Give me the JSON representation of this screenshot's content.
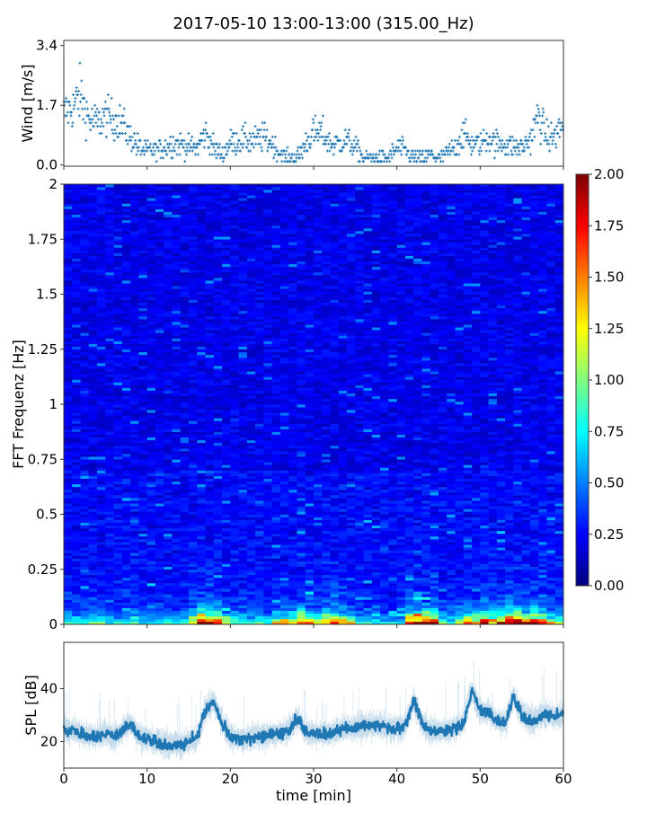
{
  "title": "2017-05-10 13:00-13:00 (315.00_Hz)",
  "chart_data": [
    {
      "type": "scatter",
      "panel": "wind",
      "ylabel": "Wind [m/s]",
      "xlim": [
        0,
        60
      ],
      "ylim": [
        0.0,
        3.55
      ],
      "yticks": [
        "0.0",
        "1.7",
        "3.4"
      ],
      "marker": "+",
      "color": "#1f77b4",
      "x_minutes": [
        0,
        1,
        2,
        3,
        4,
        5,
        6,
        7,
        8,
        9,
        10,
        11,
        12,
        13,
        14,
        15,
        16,
        17,
        18,
        19,
        20,
        21,
        22,
        23,
        24,
        25,
        26,
        27,
        28,
        29,
        30,
        31,
        32,
        33,
        34,
        35,
        36,
        37,
        38,
        39,
        40,
        41,
        42,
        43,
        44,
        45,
        46,
        47,
        48,
        49,
        50,
        51,
        52,
        53,
        54,
        55,
        56,
        57,
        58,
        59,
        60
      ],
      "wind_mean": [
        1.5,
        1.6,
        2.0,
        1.3,
        1.2,
        1.4,
        1.3,
        1.2,
        0.8,
        0.5,
        0.4,
        0.4,
        0.5,
        0.6,
        0.6,
        0.5,
        0.5,
        0.9,
        0.5,
        0.3,
        0.6,
        0.7,
        0.7,
        0.7,
        0.8,
        0.6,
        0.3,
        0.2,
        0.2,
        0.6,
        0.9,
        0.9,
        0.6,
        0.6,
        0.7,
        0.5,
        0.2,
        0.2,
        0.2,
        0.2,
        0.5,
        0.4,
        0.2,
        0.2,
        0.3,
        0.2,
        0.3,
        0.5,
        0.9,
        0.6,
        0.6,
        0.8,
        0.6,
        0.6,
        0.5,
        0.5,
        0.7,
        1.4,
        0.8,
        0.8,
        1.2
      ]
    },
    {
      "type": "heatmap",
      "panel": "spectrogram",
      "ylabel": "FFT Frequenz [Hz]",
      "xlim": [
        0,
        60
      ],
      "ylim": [
        0,
        2
      ],
      "yticks": [
        "0",
        "0.25",
        "0.5",
        "0.75",
        "1",
        "1.25",
        "1.5",
        "1.75",
        "2"
      ],
      "colormap": "jet",
      "clim": [
        0,
        2
      ],
      "colorbar_ticks": [
        "0.00",
        "0.25",
        "0.50",
        "0.75",
        "1.00",
        "1.25",
        "1.50",
        "1.75",
        "2.00"
      ],
      "background_level": 0.2,
      "low_band_level": [
        0.7,
        0.6,
        0.6,
        0.7,
        0.7,
        0.6,
        0.7,
        0.7,
        0.8,
        0.6,
        0.6,
        0.6,
        0.6,
        0.5,
        0.6,
        1.4,
        2.0,
        1.8,
        2.0,
        1.0,
        0.9,
        1.0,
        0.8,
        0.7,
        0.6,
        1.2,
        1.3,
        1.2,
        1.4,
        1.5,
        1.3,
        1.4,
        1.5,
        1.3,
        1.0,
        0.7,
        0.6,
        0.6,
        0.5,
        0.5,
        0.6,
        1.6,
        1.9,
        2.0,
        1.8,
        1.0,
        0.8,
        0.9,
        1.4,
        1.6,
        1.8,
        1.6,
        1.5,
        2.0,
        2.0,
        1.4,
        2.0,
        1.9,
        1.2,
        0.9,
        0.9
      ]
    },
    {
      "type": "line",
      "panel": "spl",
      "ylabel": "SPL [dB]",
      "xlabel": "time [min]",
      "xlim": [
        0,
        60
      ],
      "ylim": [
        10,
        57.5
      ],
      "xticks": [
        "0",
        "10",
        "20",
        "30",
        "40",
        "50",
        "60"
      ],
      "yticks": [
        "20",
        "40"
      ],
      "color": "#1f77b4",
      "spl_mean": [
        25,
        24,
        23,
        22,
        22,
        23,
        22,
        24,
        27,
        22,
        21,
        20,
        19,
        19,
        19,
        20,
        21,
        32,
        35,
        27,
        22,
        21,
        21,
        22,
        22,
        23,
        23,
        24,
        29,
        24,
        23,
        23,
        23,
        24,
        25,
        25,
        26,
        26,
        26,
        25,
        25,
        26,
        36,
        27,
        24,
        24,
        24,
        25,
        27,
        39,
        32,
        31,
        28,
        27,
        37,
        30,
        28,
        29,
        31,
        29,
        30
      ]
    }
  ]
}
